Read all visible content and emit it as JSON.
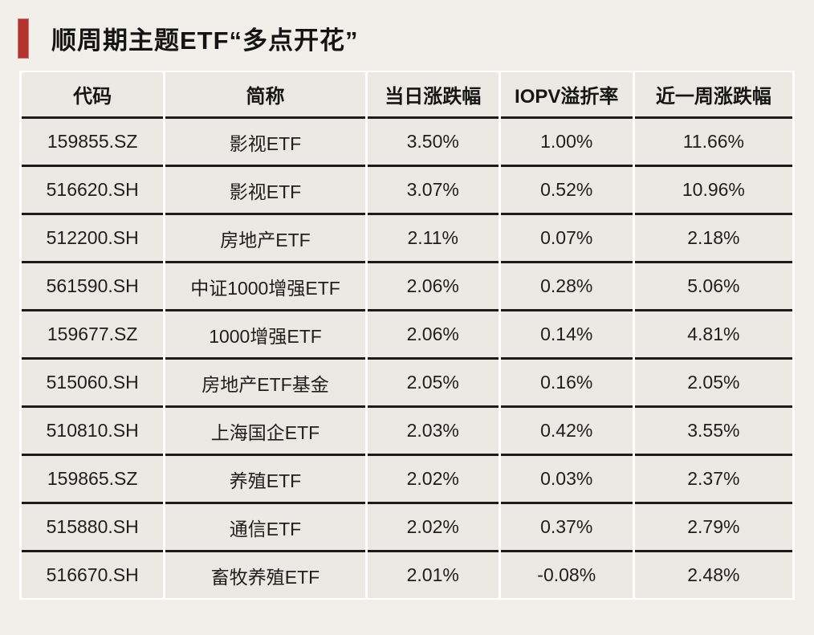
{
  "page": {
    "background_color": "#f1efe9"
  },
  "header": {
    "title": "顺周期主题ETF“多点开花”",
    "accent_color": "#b5332e"
  },
  "colors": {
    "row_divider": "#1b1b1b",
    "column_separator": "#ffffff",
    "cell_background": "#ebe9e4",
    "title_text": "#141414"
  },
  "chart_data": {
    "type": "table",
    "title": "顺周期主题ETF“多点开花”",
    "columns": [
      "代码",
      "简称",
      "当日涨跌幅",
      "IOPV溢折率",
      "近一周涨跌幅"
    ],
    "rows": [
      [
        "159855.SZ",
        "影视ETF",
        "3.50%",
        "1.00%",
        "11.66%"
      ],
      [
        "516620.SH",
        "影视ETF",
        "3.07%",
        "0.52%",
        "10.96%"
      ],
      [
        "512200.SH",
        "房地产ETF",
        "2.11%",
        "0.07%",
        "2.18%"
      ],
      [
        "561590.SH",
        "中证1000增强ETF",
        "2.06%",
        "0.28%",
        "5.06%"
      ],
      [
        "159677.SZ",
        "1000增强ETF",
        "2.06%",
        "0.14%",
        "4.81%"
      ],
      [
        "515060.SH",
        "房地产ETF基金",
        "2.05%",
        "0.16%",
        "2.05%"
      ],
      [
        "510810.SH",
        "上海国企ETF",
        "2.03%",
        "0.42%",
        "3.55%"
      ],
      [
        "159865.SZ",
        "养殖ETF",
        "2.02%",
        "0.03%",
        "2.37%"
      ],
      [
        "515880.SH",
        "通信ETF",
        "2.02%",
        "0.37%",
        "2.79%"
      ],
      [
        "516670.SH",
        "畜牧养殖ETF",
        "2.01%",
        "-0.08%",
        "2.48%"
      ]
    ]
  }
}
